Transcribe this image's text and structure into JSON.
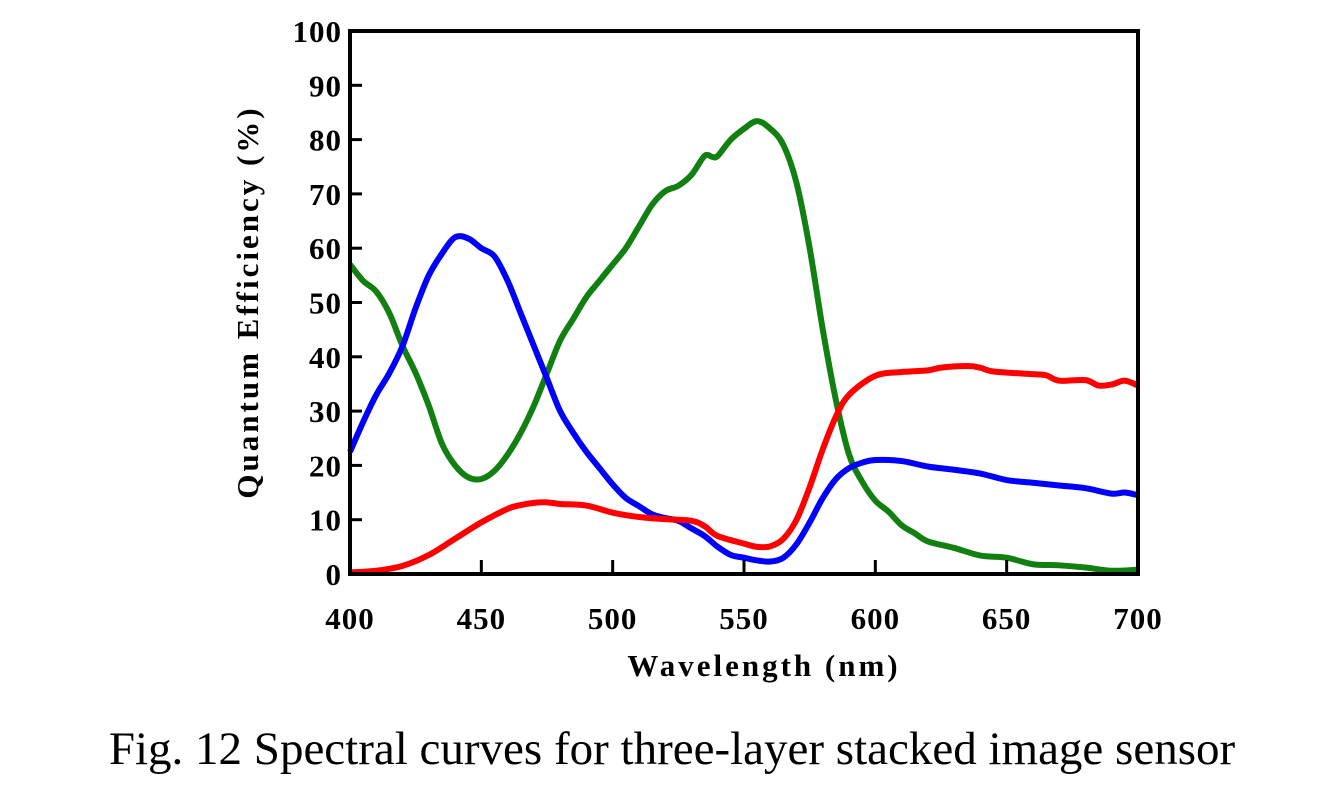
{
  "caption": "Fig. 12 Spectral curves for three-layer stacked image sensor",
  "chart_data": {
    "type": "line",
    "title": "",
    "xlabel": "Wavelength (nm)",
    "ylabel": "Quantum Efficiency (%)",
    "xlim": [
      400,
      700
    ],
    "ylim": [
      0,
      100
    ],
    "xticks": [
      400,
      450,
      500,
      550,
      600,
      650,
      700
    ],
    "yticks": [
      0,
      10,
      20,
      30,
      40,
      50,
      60,
      70,
      80,
      90,
      100
    ],
    "grid": false,
    "legend": "none",
    "series": [
      {
        "color": "#118011",
        "x": [
          400,
          405,
          410,
          415,
          420,
          425,
          430,
          435,
          440,
          445,
          450,
          455,
          460,
          465,
          470,
          475,
          480,
          485,
          490,
          495,
          500,
          505,
          510,
          515,
          520,
          525,
          530,
          535,
          538,
          540,
          545,
          550,
          555,
          560,
          565,
          570,
          575,
          580,
          585,
          590,
          595,
          600,
          605,
          610,
          615,
          620,
          630,
          640,
          650,
          660,
          670,
          680,
          690,
          700
        ],
        "y": [
          57,
          54,
          52,
          48,
          42,
          37,
          31,
          24,
          20,
          17.8,
          17.5,
          19,
          22,
          26,
          31,
          37,
          43,
          47,
          51,
          54,
          57,
          60,
          64,
          68,
          70.5,
          71.5,
          73.5,
          77,
          76.8,
          77,
          80,
          82,
          83.4,
          82,
          79,
          72,
          60,
          45,
          32,
          22,
          17,
          13.5,
          11.5,
          9,
          7.5,
          6,
          4.8,
          3.4,
          3,
          1.8,
          1.6,
          1.2,
          0.6,
          0.8
        ]
      },
      {
        "color": "#0000ff",
        "x": [
          400,
          405,
          410,
          415,
          420,
          425,
          430,
          435,
          440,
          445,
          450,
          455,
          460,
          465,
          470,
          475,
          480,
          485,
          490,
          495,
          500,
          505,
          510,
          515,
          520,
          525,
          530,
          535,
          540,
          545,
          550,
          555,
          560,
          565,
          570,
          575,
          580,
          585,
          590,
          595,
          600,
          610,
          620,
          630,
          640,
          650,
          660,
          670,
          680,
          690,
          695,
          700
        ],
        "y": [
          22.5,
          28,
          33,
          37,
          42,
          49,
          55,
          59,
          62,
          61.8,
          60,
          58.5,
          54,
          48,
          42,
          36,
          30,
          26,
          22.5,
          19.5,
          16.5,
          14,
          12.5,
          11,
          10.3,
          9.8,
          8.4,
          7,
          5,
          3.5,
          3,
          2.5,
          2.3,
          3,
          5.5,
          9.5,
          14,
          17.5,
          19.5,
          20.5,
          21,
          20.8,
          19.8,
          19.2,
          18.5,
          17.3,
          16.8,
          16.3,
          15.8,
          14.8,
          15,
          14.5
        ]
      },
      {
        "color": "#ff0000",
        "x": [
          400,
          410,
          420,
          430,
          440,
          450,
          460,
          465,
          470,
          475,
          480,
          490,
          500,
          510,
          520,
          530,
          535,
          540,
          550,
          555,
          560,
          565,
          570,
          575,
          580,
          585,
          590,
          600,
          610,
          620,
          625,
          635,
          640,
          645,
          660,
          665,
          670,
          680,
          685,
          690,
          695,
          700
        ],
        "y": [
          0.3,
          0.6,
          1.5,
          3.5,
          6.5,
          9.5,
          12,
          12.7,
          13.1,
          13.2,
          12.9,
          12.6,
          11.3,
          10.5,
          10.1,
          9.8,
          8.8,
          7,
          5.6,
          5,
          5.1,
          6.5,
          10,
          16,
          23,
          29,
          33,
          36.5,
          37.2,
          37.5,
          38,
          38.3,
          38,
          37.3,
          36.8,
          36.6,
          35.6,
          35.7,
          34.7,
          34.9,
          35.6,
          34.7
        ]
      }
    ]
  }
}
